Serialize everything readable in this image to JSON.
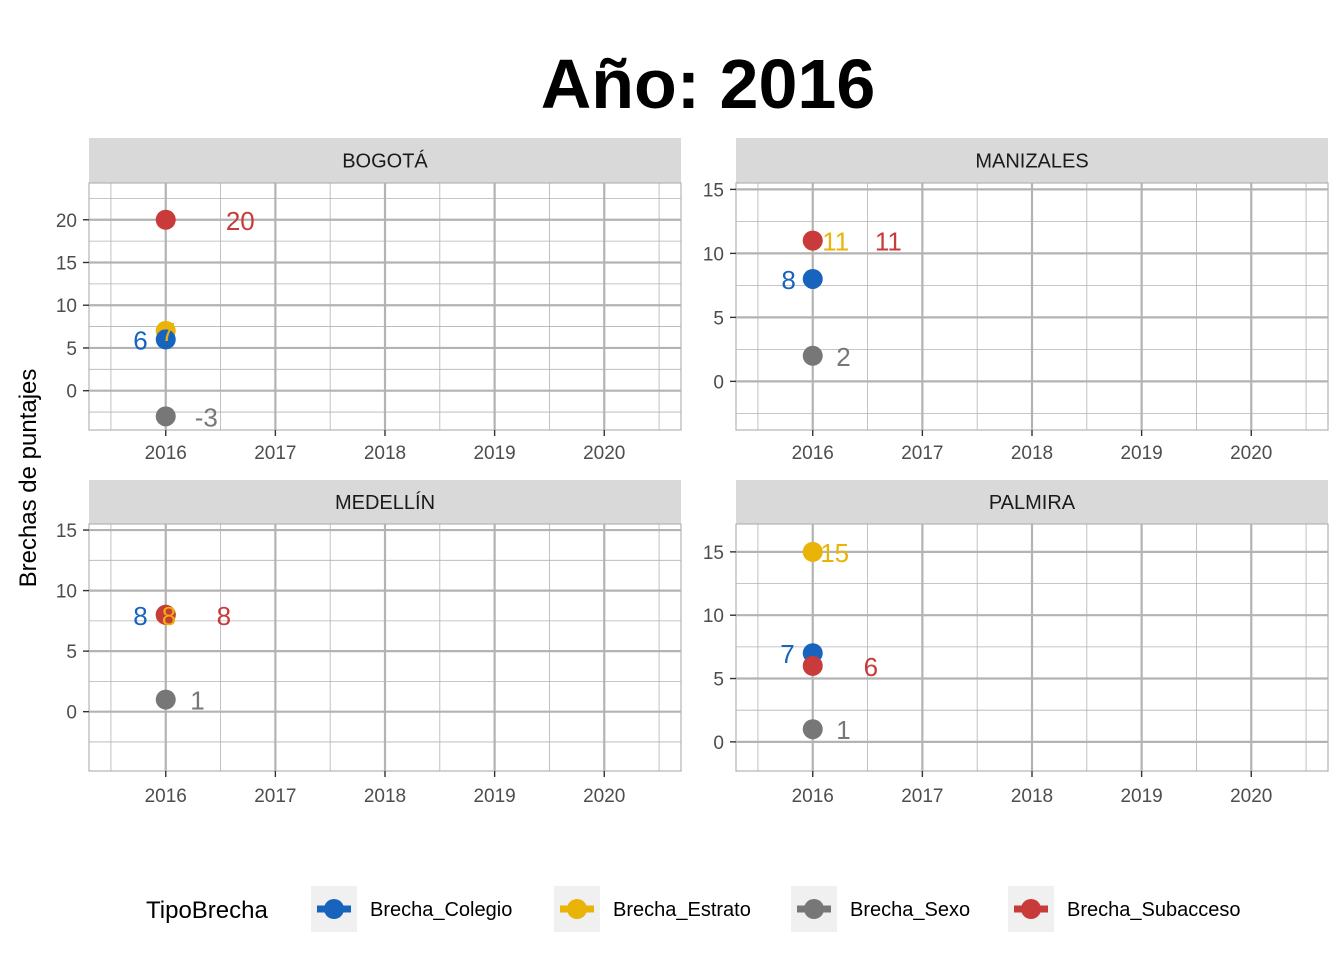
{
  "chart_data": {
    "type": "scatter",
    "title": "Año: 2016",
    "ylabel": "Brechas de puntajes",
    "xlabel": "",
    "x_ticks": [
      2016,
      2017,
      2018,
      2019,
      2020
    ],
    "xlim": [
      2015.3,
      2020.7
    ],
    "grid": true,
    "legend": {
      "title": "TipoBrecha",
      "placement": "bottom",
      "items": [
        {
          "name": "Brecha_Colegio",
          "color": "#1763BD"
        },
        {
          "name": "Brecha_Estrato",
          "color": "#EAB308"
        },
        {
          "name": "Brecha_Sexo",
          "color": "#777777"
        },
        {
          "name": "Brecha_Subacceso",
          "color": "#C93B3B"
        }
      ]
    },
    "panels": [
      {
        "name": "BOGOTÁ",
        "ylim": [
          -4.6,
          24.3
        ],
        "y_ticks": [
          0,
          5,
          10,
          15,
          20
        ],
        "points": [
          {
            "series": "Brecha_Subacceso",
            "x": 2016,
            "y": 20,
            "label": "20",
            "label_dx": 0.68
          },
          {
            "series": "Brecha_Estrato",
            "x": 2016,
            "y": 7,
            "label": "7",
            "label_dx": 0.02
          },
          {
            "series": "Brecha_Colegio",
            "x": 2016,
            "y": 6,
            "label": "6",
            "label_dx": -0.23
          },
          {
            "series": "Brecha_Sexo",
            "x": 2016,
            "y": -3,
            "label": "-3",
            "label_dx": 0.37
          }
        ]
      },
      {
        "name": "MANIZALES",
        "ylim": [
          -3.8,
          15.5
        ],
        "y_ticks": [
          0,
          5,
          10,
          15
        ],
        "points": [
          {
            "series": "Brecha_Estrato",
            "x": 2016,
            "y": 11,
            "label": "11",
            "label_dx": 0.21
          },
          {
            "series": "Brecha_Subacceso",
            "x": 2016,
            "y": 11,
            "label": "11",
            "label_dx": 0.69
          },
          {
            "series": "Brecha_Colegio",
            "x": 2016,
            "y": 8,
            "label": "8",
            "label_dx": -0.22
          },
          {
            "series": "Brecha_Sexo",
            "x": 2016,
            "y": 2,
            "label": "2",
            "label_dx": 0.28
          }
        ]
      },
      {
        "name": "MEDELLÍN",
        "ylim": [
          -4.9,
          15.5
        ],
        "y_ticks": [
          0,
          5,
          10,
          15
        ],
        "points": [
          {
            "series": "Brecha_Colegio",
            "x": 2016,
            "y": 8,
            "label": "8",
            "label_dx": -0.23
          },
          {
            "series": "Brecha_Estrato",
            "x": 2016,
            "y": 8,
            "label": "8",
            "label_dx": 0.03
          },
          {
            "series": "Brecha_Subacceso",
            "x": 2016,
            "y": 8,
            "label": "8",
            "label_dx": 0.53
          },
          {
            "series": "Brecha_Sexo",
            "x": 2016,
            "y": 1,
            "label": "1",
            "label_dx": 0.29
          }
        ]
      },
      {
        "name": "PALMIRA",
        "ylim": [
          -2.3,
          17.2
        ],
        "y_ticks": [
          0,
          5,
          10,
          15
        ],
        "points": [
          {
            "series": "Brecha_Estrato",
            "x": 2016,
            "y": 15,
            "label": "15",
            "label_dx": 0.2
          },
          {
            "series": "Brecha_Colegio",
            "x": 2016,
            "y": 7,
            "label": "7",
            "label_dx": -0.23
          },
          {
            "series": "Brecha_Subacceso",
            "x": 2016,
            "y": 6,
            "label": "6",
            "label_dx": 0.53
          },
          {
            "series": "Brecha_Sexo",
            "x": 2016,
            "y": 1,
            "label": "1",
            "label_dx": 0.28
          }
        ]
      }
    ]
  }
}
